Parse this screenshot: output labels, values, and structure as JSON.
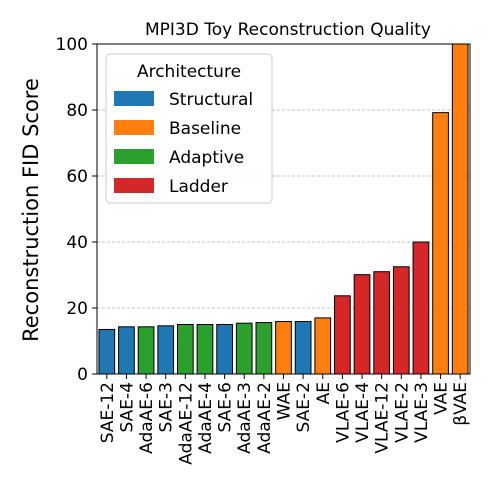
{
  "chart_data": {
    "type": "bar",
    "title": "MPI3D Toy Reconstruction Quality",
    "xlabel": "",
    "ylabel": "Reconstruction FID Score",
    "ylim": [
      0,
      100
    ],
    "yticks": [
      "0",
      "20",
      "40",
      "60",
      "80",
      "100"
    ],
    "grid": "horizontal dashed",
    "legend": {
      "title": "Architecture",
      "placement": "upper-left",
      "entries": [
        {
          "label": "Structural",
          "color": "#1f77b4"
        },
        {
          "label": "Baseline",
          "color": "#ff7f0e"
        },
        {
          "label": "Adaptive",
          "color": "#2ca02c"
        },
        {
          "label": "Ladder",
          "color": "#d62728"
        }
      ]
    },
    "categories": [
      "SAE-12",
      "SAE-4",
      "AdaAE-6",
      "SAE-3",
      "AdaAE-12",
      "AdaAE-4",
      "SAE-6",
      "AdaAE-3",
      "AdaAE-2",
      "WAE",
      "SAE-2",
      "AE",
      "VLAE-6",
      "VLAE-4",
      "VLAE-12",
      "VLAE-2",
      "VLAE-3",
      "VAE",
      "βVAE"
    ],
    "values": [
      13.5,
      14.3,
      14.3,
      14.6,
      15.0,
      15.0,
      15.0,
      15.4,
      15.6,
      15.9,
      15.9,
      17.0,
      23.7,
      30.1,
      31.0,
      32.5,
      40.0,
      79.2,
      100.0
    ],
    "groups": [
      "Structural",
      "Structural",
      "Adaptive",
      "Structural",
      "Adaptive",
      "Adaptive",
      "Structural",
      "Adaptive",
      "Adaptive",
      "Baseline",
      "Structural",
      "Baseline",
      "Ladder",
      "Ladder",
      "Ladder",
      "Ladder",
      "Ladder",
      "Baseline",
      "Baseline"
    ]
  }
}
